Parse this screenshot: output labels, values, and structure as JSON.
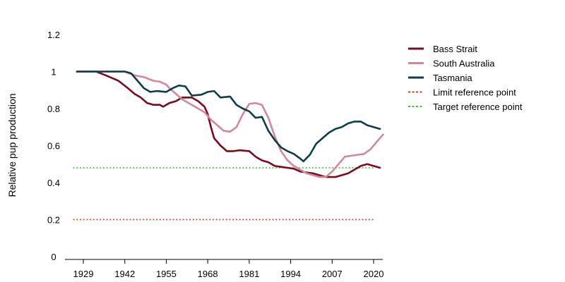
{
  "chart_data": {
    "type": "line",
    "title": "",
    "xlabel": "",
    "ylabel": "Relative pup production",
    "xlim": [
      1926,
      2020
    ],
    "ylim": [
      0,
      1.2
    ],
    "xticks": [
      1929,
      1942,
      1955,
      1968,
      1981,
      1994,
      2007,
      2020
    ],
    "xtick_labels": [
      "1929",
      "1942",
      "1955",
      "1968",
      "1981",
      "1994",
      "2007",
      "2020"
    ],
    "yticks": [
      0,
      0.2,
      0.4,
      0.6,
      0.8,
      1,
      1.2
    ],
    "ytick_labels": [
      "0",
      "0.2",
      "0.4",
      "0.6",
      "0.8",
      "1",
      "1.2"
    ],
    "grid": false,
    "legend_position": "right",
    "series": [
      {
        "name": "Bass Strait",
        "color": "#7b0a1e",
        "style": "solid",
        "points": [
          [
            1927,
            1
          ],
          [
            1933,
            1
          ],
          [
            1936,
            0.98
          ],
          [
            1940,
            0.95
          ],
          [
            1943,
            0.91
          ],
          [
            1945,
            0.88
          ],
          [
            1947,
            0.86
          ],
          [
            1949,
            0.83
          ],
          [
            1951,
            0.82
          ],
          [
            1953,
            0.82
          ],
          [
            1954,
            0.81
          ],
          [
            1956,
            0.83
          ],
          [
            1958,
            0.84
          ],
          [
            1960,
            0.86
          ],
          [
            1963,
            0.86
          ],
          [
            1965,
            0.84
          ],
          [
            1967,
            0.81
          ],
          [
            1968,
            0.77
          ],
          [
            1969,
            0.7
          ],
          [
            1970,
            0.64
          ],
          [
            1972,
            0.6
          ],
          [
            1974,
            0.57
          ],
          [
            1976,
            0.57
          ],
          [
            1978,
            0.575
          ],
          [
            1981,
            0.57
          ],
          [
            1983,
            0.54
          ],
          [
            1985,
            0.52
          ],
          [
            1987,
            0.51
          ],
          [
            1989,
            0.49
          ],
          [
            1991,
            0.485
          ],
          [
            1993,
            0.48
          ],
          [
            1995,
            0.475
          ],
          [
            1997,
            0.46
          ],
          [
            1999,
            0.455
          ],
          [
            2001,
            0.45
          ],
          [
            2003,
            0.44
          ],
          [
            2005,
            0.43
          ],
          [
            2008,
            0.43
          ],
          [
            2010,
            0.44
          ],
          [
            2012,
            0.45
          ],
          [
            2014,
            0.47
          ],
          [
            2016,
            0.49
          ],
          [
            2018,
            0.5
          ],
          [
            2020,
            0.49
          ],
          [
            2022,
            0.48
          ]
        ]
      },
      {
        "name": "South Australia",
        "color": "#d4879b",
        "style": "solid",
        "points": [
          [
            1927,
            1
          ],
          [
            1942,
            1
          ],
          [
            1945,
            0.98
          ],
          [
            1948,
            0.97
          ],
          [
            1951,
            0.95
          ],
          [
            1953,
            0.945
          ],
          [
            1955,
            0.93
          ],
          [
            1956,
            0.91
          ],
          [
            1958,
            0.88
          ],
          [
            1960,
            0.85
          ],
          [
            1962,
            0.83
          ],
          [
            1965,
            0.8
          ],
          [
            1967,
            0.78
          ],
          [
            1969,
            0.74
          ],
          [
            1971,
            0.71
          ],
          [
            1973,
            0.68
          ],
          [
            1975,
            0.675
          ],
          [
            1977,
            0.7
          ],
          [
            1979,
            0.77
          ],
          [
            1981,
            0.825
          ],
          [
            1983,
            0.83
          ],
          [
            1985,
            0.82
          ],
          [
            1987,
            0.75
          ],
          [
            1989,
            0.65
          ],
          [
            1991,
            0.57
          ],
          [
            1993,
            0.52
          ],
          [
            1995,
            0.49
          ],
          [
            1997,
            0.47
          ],
          [
            1999,
            0.45
          ],
          [
            2001,
            0.44
          ],
          [
            2003,
            0.43
          ],
          [
            2005,
            0.43
          ],
          [
            2007,
            0.46
          ],
          [
            2009,
            0.5
          ],
          [
            2011,
            0.54
          ],
          [
            2013,
            0.545
          ],
          [
            2015,
            0.55
          ],
          [
            2017,
            0.555
          ],
          [
            2019,
            0.58
          ],
          [
            2021,
            0.62
          ],
          [
            2023,
            0.66
          ]
        ]
      },
      {
        "name": "Tasmania",
        "color": "#0f3c4a",
        "style": "solid",
        "points": [
          [
            1927,
            1
          ],
          [
            1942,
            1
          ],
          [
            1944,
            0.99
          ],
          [
            1946,
            0.95
          ],
          [
            1948,
            0.91
          ],
          [
            1950,
            0.89
          ],
          [
            1952,
            0.895
          ],
          [
            1955,
            0.89
          ],
          [
            1957,
            0.91
          ],
          [
            1959,
            0.925
          ],
          [
            1961,
            0.92
          ],
          [
            1963,
            0.87
          ],
          [
            1966,
            0.875
          ],
          [
            1968,
            0.89
          ],
          [
            1970,
            0.895
          ],
          [
            1972,
            0.86
          ],
          [
            1975,
            0.865
          ],
          [
            1977,
            0.82
          ],
          [
            1979,
            0.8
          ],
          [
            1981,
            0.785
          ],
          [
            1983,
            0.75
          ],
          [
            1985,
            0.755
          ],
          [
            1987,
            0.68
          ],
          [
            1989,
            0.63
          ],
          [
            1991,
            0.59
          ],
          [
            1993,
            0.57
          ],
          [
            1995,
            0.555
          ],
          [
            1997,
            0.53
          ],
          [
            1998,
            0.515
          ],
          [
            2000,
            0.55
          ],
          [
            2002,
            0.61
          ],
          [
            2004,
            0.64
          ],
          [
            2006,
            0.67
          ],
          [
            2008,
            0.69
          ],
          [
            2010,
            0.7
          ],
          [
            2012,
            0.72
          ],
          [
            2014,
            0.73
          ],
          [
            2016,
            0.73
          ],
          [
            2018,
            0.71
          ],
          [
            2020,
            0.7
          ],
          [
            2022,
            0.69
          ]
        ]
      },
      {
        "name": "Limit reference point",
        "color": "#e03a1e",
        "style": "dotted",
        "points": [
          [
            1926,
            0.2
          ],
          [
            2020,
            0.2
          ]
        ]
      },
      {
        "name": "Target reference point",
        "color": "#33cc33",
        "style": "dotted",
        "points": [
          [
            1926,
            0.48
          ],
          [
            2020,
            0.48
          ]
        ]
      }
    ]
  }
}
